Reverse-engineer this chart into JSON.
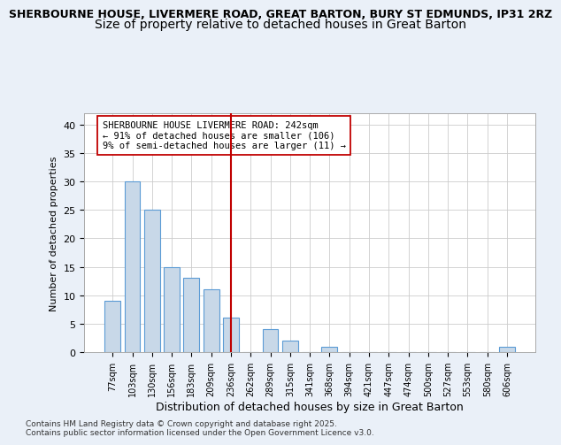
{
  "title_line1": "SHERBOURNE HOUSE, LIVERMERE ROAD, GREAT BARTON, BURY ST EDMUNDS, IP31 2RZ",
  "title_line2": "Size of property relative to detached houses in Great Barton",
  "xlabel": "Distribution of detached houses by size in Great Barton",
  "ylabel": "Number of detached properties",
  "categories": [
    "77sqm",
    "103sqm",
    "130sqm",
    "156sqm",
    "183sqm",
    "209sqm",
    "236sqm",
    "262sqm",
    "289sqm",
    "315sqm",
    "341sqm",
    "368sqm",
    "394sqm",
    "421sqm",
    "447sqm",
    "474sqm",
    "500sqm",
    "527sqm",
    "553sqm",
    "580sqm",
    "606sqm"
  ],
  "values": [
    9,
    30,
    25,
    15,
    13,
    11,
    6,
    0,
    4,
    2,
    0,
    1,
    0,
    0,
    0,
    0,
    0,
    0,
    0,
    0,
    1
  ],
  "bar_color": "#c8d8e8",
  "bar_edge_color": "#5b9bd5",
  "vline_pos": 6.0,
  "vline_color": "#c00000",
  "annotation_text": "SHERBOURNE HOUSE LIVERMERE ROAD: 242sqm\n← 91% of detached houses are smaller (106)\n9% of semi-detached houses are larger (11) →",
  "annotation_box_color": "#ffffff",
  "annotation_box_edge": "#c00000",
  "ylim": [
    0,
    42
  ],
  "yticks": [
    0,
    5,
    10,
    15,
    20,
    25,
    30,
    35,
    40
  ],
  "footer": "Contains HM Land Registry data © Crown copyright and database right 2025.\nContains public sector information licensed under the Open Government Licence v3.0.",
  "bg_color": "#eaf0f8",
  "plot_bg_color": "#ffffff",
  "bar_width": 0.8
}
